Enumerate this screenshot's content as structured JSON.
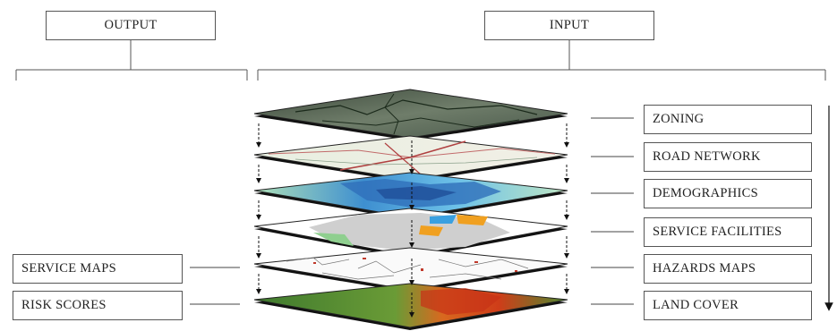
{
  "header": {
    "output_label": "OUTPUT",
    "input_label": "INPUT"
  },
  "input_layers": [
    {
      "label": "ZONING"
    },
    {
      "label": "ROAD NETWORK"
    },
    {
      "label": "DEMOGRAPHICS"
    },
    {
      "label": "SERVICE FACILITIES"
    },
    {
      "label": "HAZARDS MAPS"
    },
    {
      "label": "LAND COVER"
    }
  ],
  "outputs": [
    {
      "label": "SERVICE MAPS"
    },
    {
      "label": "RISK SCORES"
    }
  ]
}
